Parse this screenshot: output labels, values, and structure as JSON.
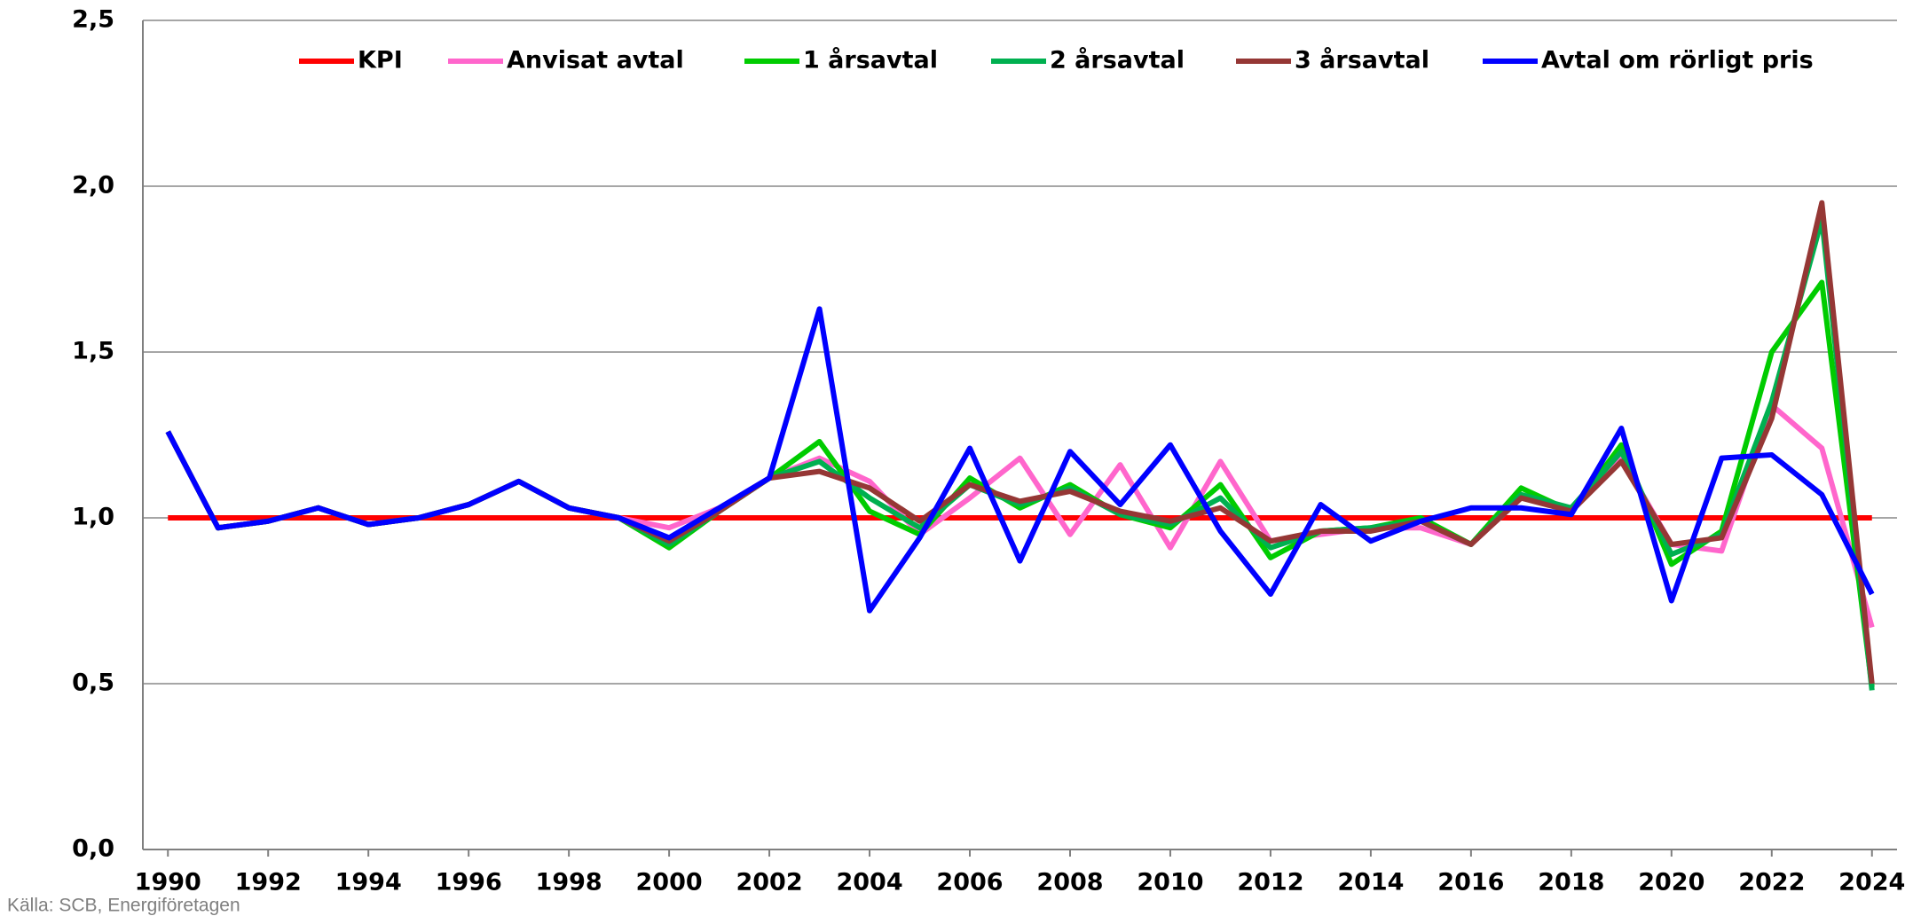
{
  "chart_data": {
    "type": "line",
    "x": [
      1990,
      1991,
      1992,
      1993,
      1994,
      1995,
      1996,
      1997,
      1998,
      1999,
      2000,
      2001,
      2002,
      2003,
      2004,
      2005,
      2006,
      2007,
      2008,
      2009,
      2010,
      2011,
      2012,
      2013,
      2014,
      2015,
      2016,
      2017,
      2018,
      2019,
      2020,
      2021,
      2022,
      2023,
      2024
    ],
    "xlim": [
      1989.5,
      2024.5
    ],
    "xticks": [
      1990,
      1992,
      1994,
      1996,
      1998,
      2000,
      2002,
      2004,
      2006,
      2008,
      2010,
      2012,
      2014,
      2016,
      2018,
      2020,
      2022,
      2024
    ],
    "ylim": [
      0,
      2.5
    ],
    "yticks": [
      {
        "value": 0,
        "label": "0,0"
      },
      {
        "value": 0.5,
        "label": "0,5"
      },
      {
        "value": 1,
        "label": "1,0"
      },
      {
        "value": 1.5,
        "label": "1,5"
      },
      {
        "value": 2,
        "label": "2,0"
      },
      {
        "value": 2.5,
        "label": "2,5"
      }
    ],
    "grid": true,
    "legend": "top",
    "series": [
      {
        "name": "KPI",
        "color": "#ff0000",
        "values": [
          1,
          1,
          1,
          1,
          1,
          1,
          1,
          1,
          1,
          1,
          1,
          1,
          1,
          1,
          1,
          1,
          1,
          1,
          1,
          1,
          1,
          1,
          1,
          1,
          1,
          1,
          1,
          1,
          1,
          1,
          1,
          1,
          1,
          1,
          1
        ]
      },
      {
        "name": "Anvisat avtal",
        "color": "#ff66cc",
        "values": [
          1.26,
          0.97,
          0.99,
          1.03,
          0.98,
          1.0,
          1.04,
          1.11,
          1.03,
          1.0,
          0.97,
          1.03,
          1.12,
          1.18,
          1.11,
          0.95,
          1.06,
          1.18,
          0.95,
          1.16,
          0.91,
          1.17,
          0.93,
          0.95,
          0.97,
          0.97,
          0.92,
          1.06,
          1.03,
          1.18,
          0.92,
          0.9,
          1.34,
          1.21,
          0.67
        ]
      },
      {
        "name": "1 årsavtal",
        "color": "#00cc00",
        "values": [
          1.26,
          0.97,
          0.99,
          1.03,
          0.98,
          1.0,
          1.04,
          1.11,
          1.03,
          1.0,
          0.91,
          1.02,
          1.12,
          1.23,
          1.02,
          0.95,
          1.12,
          1.03,
          1.1,
          1.01,
          0.97,
          1.1,
          0.88,
          0.96,
          0.97,
          1.0,
          0.92,
          1.09,
          1.02,
          1.22,
          0.86,
          0.96,
          1.5,
          1.71,
          0.49
        ]
      },
      {
        "name": "2 årsavtal",
        "color": "#00b050",
        "values": [
          1.26,
          0.97,
          0.99,
          1.03,
          0.98,
          1.0,
          1.04,
          1.11,
          1.03,
          1.0,
          0.92,
          1.02,
          1.12,
          1.17,
          1.06,
          0.97,
          1.1,
          1.04,
          1.09,
          1.01,
          0.98,
          1.06,
          0.91,
          0.96,
          0.97,
          0.99,
          0.92,
          1.07,
          1.03,
          1.2,
          0.89,
          0.95,
          1.35,
          1.9,
          0.48
        ]
      },
      {
        "name": "3 årsavtal",
        "color": "#953735",
        "values": [
          1.26,
          0.97,
          0.99,
          1.03,
          0.98,
          1.0,
          1.04,
          1.11,
          1.03,
          1.0,
          0.93,
          1.02,
          1.12,
          1.14,
          1.09,
          0.99,
          1.1,
          1.05,
          1.08,
          1.02,
          0.99,
          1.03,
          0.93,
          0.96,
          0.96,
          0.99,
          0.92,
          1.06,
          1.02,
          1.17,
          0.92,
          0.94,
          1.3,
          1.95,
          0.5
        ]
      },
      {
        "name": "Avtal om rörligt pris",
        "color": "#0000ff",
        "values": [
          1.26,
          0.97,
          0.99,
          1.03,
          0.98,
          1.0,
          1.04,
          1.11,
          1.03,
          1.0,
          0.94,
          1.03,
          1.12,
          1.63,
          0.72,
          0.94,
          1.21,
          0.87,
          1.2,
          1.04,
          1.22,
          0.96,
          0.77,
          1.04,
          0.93,
          0.99,
          1.03,
          1.03,
          1.01,
          1.27,
          0.75,
          1.18,
          1.19,
          1.07,
          0.77
        ]
      }
    ],
    "source": "Källa: SCB, Energiföretagen"
  }
}
